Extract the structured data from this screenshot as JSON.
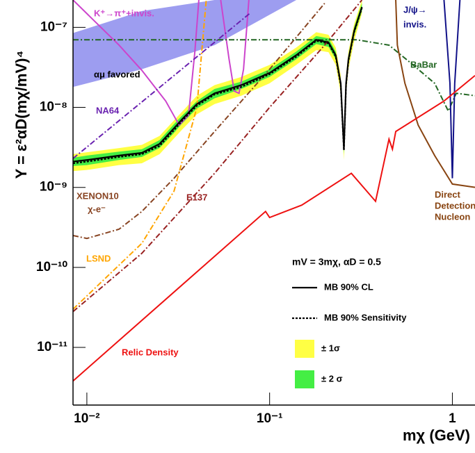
{
  "chart_data": {
    "type": "line",
    "x_label": "mχ (GeV)",
    "y_label": "Y = ε²αD(mχ/mV)⁴",
    "xscale": "log",
    "yscale": "log",
    "xlim": [
      0.0084,
      1.33
    ],
    "ylim": [
      1.9e-12,
      2.2e-07
    ],
    "xticks": [
      {
        "value": 0.01,
        "label": "10⁻²"
      },
      {
        "value": 0.1,
        "label": "10⁻¹"
      },
      1
    ],
    "yticks": [
      {
        "value": 1e-11,
        "label": "10⁻¹¹"
      },
      {
        "value": 1e-10,
        "label": "10⁻¹⁰"
      },
      {
        "value": 1e-09,
        "label": "10⁻⁹"
      },
      {
        "value": 1e-08,
        "label": "10⁻⁸"
      },
      {
        "value": 1e-07,
        "label": "10⁻⁷"
      }
    ],
    "legend_title": "mV = 3mχ, αD = 0.5",
    "bands": [
      {
        "label": [
          "αμ favored"
        ],
        "color": "#9d9df0",
        "x": [
          0.0084,
          0.02,
          0.05,
          0.14
        ],
        "lower": [
          1.8e-08,
          3e-08,
          6e-08,
          2.2e-07
        ],
        "upper": [
          8.5e-08,
          1.6e-07,
          2.2e-07,
          2.2e-07
        ]
      },
      {
        "name": "± 2 σ",
        "color": "#ffff44",
        "x": [
          0.0084,
          0.01,
          0.015,
          0.02,
          0.025,
          0.03,
          0.033,
          0.04,
          0.05,
          0.07,
          0.1,
          0.14,
          0.18,
          0.21,
          0.23,
          0.245,
          0.255,
          0.262,
          0.27,
          0.29,
          0.32
        ],
        "lower": [
          1.6e-09,
          1.65e-09,
          1.9e-09,
          2e-09,
          2.6e-09,
          4.1e-09,
          5.2e-09,
          8.2e-09,
          1.1e-08,
          1.4e-08,
          2e-08,
          3.4e-08,
          5.2e-08,
          4.9e-08,
          3.4e-08,
          1.5e-08,
          2.2e-09,
          1.5e-08,
          3e-08,
          6.7e-08,
          1.5e-07
        ],
        "upper": [
          2.6e-09,
          2.75e-09,
          3.1e-09,
          3.4e-09,
          4.4e-09,
          6.9e-09,
          8.7e-09,
          1.4e-08,
          1.9e-08,
          2.4e-08,
          3.4e-08,
          5.6e-08,
          8.7e-08,
          8.1e-08,
          5.6e-08,
          2.5e-08,
          3.7e-09,
          2.5e-08,
          5e-08,
          1.1e-07,
          2.2e-07
        ]
      },
      {
        "name": "± 1σ",
        "color": "#44ee44",
        "x": [
          0.0084,
          0.01,
          0.015,
          0.02,
          0.025,
          0.03,
          0.033,
          0.04,
          0.05,
          0.07,
          0.1,
          0.14,
          0.18,
          0.21,
          0.23,
          0.245,
          0.255,
          0.262,
          0.27,
          0.29,
          0.32
        ],
        "lower": [
          1.85e-09,
          1.9e-09,
          2.2e-09,
          2.4e-09,
          3.1e-09,
          4.8e-09,
          6.2e-09,
          9.7e-09,
          1.3e-08,
          1.7e-08,
          2.4e-08,
          4e-08,
          6.2e-08,
          5.7e-08,
          4e-08,
          1.8e-08,
          2.6e-09,
          1.8e-08,
          3.5e-08,
          7.9e-08,
          1.6e-07
        ],
        "upper": [
          2.35e-09,
          2.5e-09,
          2.8e-09,
          3e-09,
          3.9e-09,
          6.2e-09,
          7.8e-09,
          1.2e-08,
          1.7e-08,
          2.1e-08,
          3e-08,
          5e-08,
          7.8e-08,
          7.3e-08,
          5e-08,
          2.2e-08,
          3.4e-09,
          2.2e-08,
          4.5e-08,
          1e-07,
          2e-07
        ]
      }
    ],
    "series": [
      {
        "label": [
          "K⁺→π⁺+invis."
        ],
        "color": "#cc44cc",
        "dash": "solid",
        "x": [
          0.0084,
          0.015,
          0.02,
          0.027,
          0.032,
          0.036,
          0.039,
          0.041,
          null,
          0.054,
          0.06,
          0.064,
          0.068,
          0.072,
          0.077
        ],
        "values": [
          2.2e-07,
          6e-08,
          2.9e-08,
          1.2e-08,
          6e-09,
          8e-09,
          5e-08,
          2.2e-07,
          null,
          2.2e-07,
          4e-08,
          1.6e-08,
          1.5e-08,
          3e-08,
          2.2e-07
        ]
      },
      {
        "label": [
          "NA64"
        ],
        "color": "#6a22b0",
        "dash": "dashdot",
        "x": [
          0.0084,
          0.078
        ],
        "values": [
          2.3e-09,
          1.5e-07
        ]
      },
      {
        "label": [
          "XENON10",
          "χ-e⁻"
        ],
        "color": "#884422",
        "dash": "dashdot",
        "x": [
          0.0084,
          0.01,
          0.015,
          0.02,
          0.03,
          0.05,
          0.1,
          0.2
        ],
        "values": [
          2.5e-10,
          2.3e-10,
          3e-10,
          5e-10,
          1.3e-09,
          5e-09,
          3e-08,
          2e-07
        ]
      },
      {
        "label": [
          "LSND"
        ],
        "color": "#ffa500",
        "dash": "dashdot",
        "x": [
          0.0084,
          0.02,
          0.03,
          0.04,
          0.045
        ],
        "values": [
          3e-11,
          2e-10,
          9e-10,
          1e-08,
          2.2e-07
        ]
      },
      {
        "label": [
          "E137"
        ],
        "color": "#992222",
        "dash": "dashdot",
        "x": [
          0.0084,
          0.02,
          0.05,
          0.1,
          0.2,
          0.32
        ],
        "values": [
          2.8e-11,
          1.5e-10,
          1.5e-09,
          1e-08,
          6e-08,
          2.2e-07
        ]
      },
      {
        "label": [
          "BaBar"
        ],
        "color": "#226622",
        "dash": "dashdot",
        "x": [
          0.0084,
          0.3,
          0.45,
          0.6,
          0.8,
          0.95,
          1.05,
          1.33
        ],
        "values": [
          7e-08,
          7e-08,
          6e-08,
          3.5e-08,
          2e-08,
          9e-09,
          1.5e-08,
          1.4e-08
        ]
      },
      {
        "label": [
          "J/ψ→",
          "invis."
        ],
        "color": "#111188",
        "dash": "solid",
        "x": [
          0.9,
          0.97,
          1.0,
          1.03,
          1.1
        ],
        "values": [
          2.2e-07,
          2e-08,
          1.3e-09,
          2e-08,
          2.2e-07
        ]
      },
      {
        "label": [
          "Direct",
          "Detection",
          "Nucleon"
        ],
        "color": "#884411",
        "dash": "solid",
        "x": [
          0.49,
          0.5,
          0.55,
          0.65,
          0.8,
          1.0,
          1.33
        ],
        "values": [
          2.2e-07,
          6e-08,
          2e-08,
          6e-09,
          2.5e-09,
          1.1e-09,
          1e-09
        ]
      },
      {
        "label": [
          "Relic Density"
        ],
        "color": "#ee1111",
        "dash": "solid",
        "x": [
          0.0084,
          0.095,
          0.1,
          0.15,
          0.28,
          0.38,
          0.45,
          0.47,
          0.49,
          0.9,
          1.33
        ],
        "values": [
          3.8e-12,
          5e-10,
          4.2e-10,
          6e-10,
          1.5e-09,
          6.7e-10,
          4e-09,
          3e-09,
          5e-09,
          1.2e-08,
          2.5e-08
        ]
      },
      {
        "name": "MB 90% CL",
        "color": "#000000",
        "dash": "solid",
        "x": [
          0.0084,
          0.01,
          0.015,
          0.02,
          0.025,
          0.03,
          0.033,
          0.04,
          0.05,
          0.07,
          0.1,
          0.14,
          0.18,
          0.21,
          0.23,
          0.245,
          0.255,
          0.262,
          0.27,
          0.29,
          0.32
        ],
        "values": [
          2.1e-09,
          2.2e-09,
          2.5e-09,
          2.7e-09,
          3.5e-09,
          5.5e-09,
          7e-09,
          1.1e-08,
          1.5e-08,
          1.9e-08,
          2.7e-08,
          4.5e-08,
          7e-08,
          6.5e-08,
          4.5e-08,
          2e-08,
          3e-09,
          2e-08,
          4e-08,
          9e-08,
          1.8e-07
        ]
      },
      {
        "name": "MB 90% Sensitivity",
        "color": "#000000",
        "dash": "dot",
        "x": [
          0.0084,
          0.01,
          0.015,
          0.02,
          0.025,
          0.03,
          0.033,
          0.04,
          0.05,
          0.07,
          0.1,
          0.14,
          0.18,
          0.21,
          0.23,
          0.245,
          0.255,
          0.262,
          0.27,
          0.29,
          0.32
        ],
        "values": [
          2e-09,
          2.1e-09,
          2.4e-09,
          2.6e-09,
          3.3e-09,
          5.2e-09,
          6.7e-09,
          1.05e-08,
          1.45e-08,
          1.8e-08,
          2.6e-08,
          4.3e-08,
          6.8e-08,
          6.3e-08,
          4.3e-08,
          1.9e-08,
          2.9e-09,
          1.9e-08,
          3.8e-08,
          8.7e-08,
          1.75e-07
        ]
      }
    ]
  }
}
